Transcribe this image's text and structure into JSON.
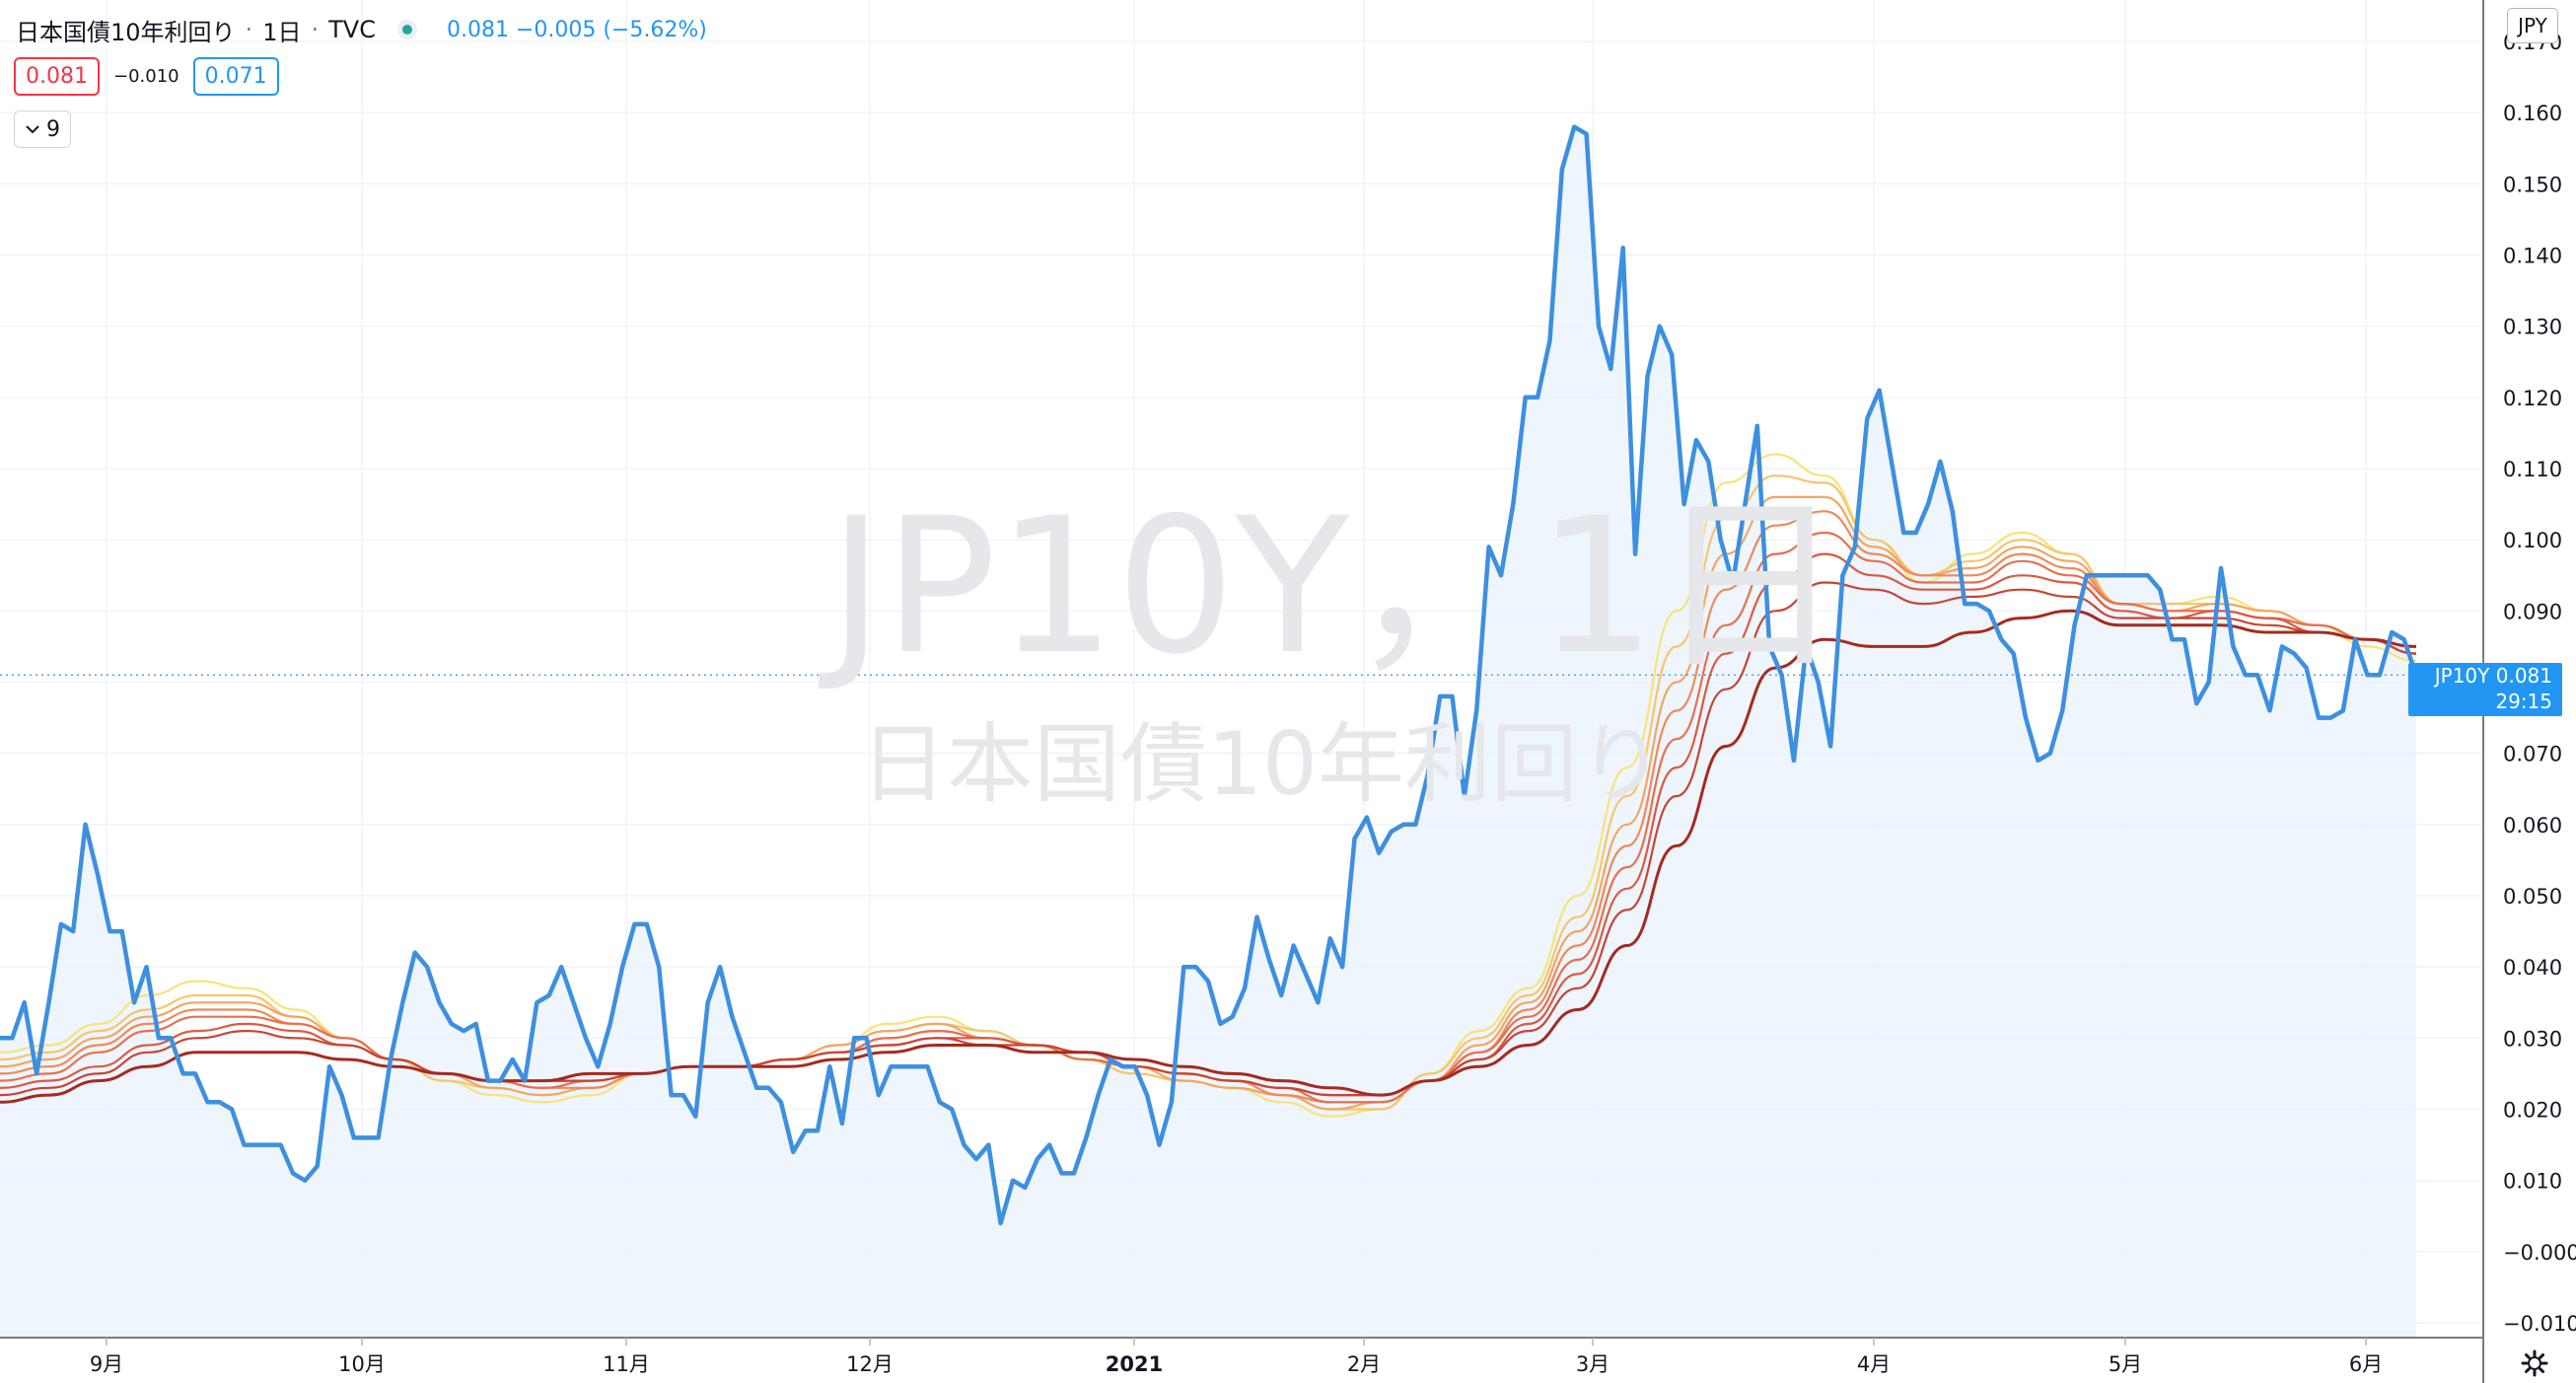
{
  "legend": {
    "symbol_name": "日本国債10年利回り",
    "interval": "1日",
    "exchange": "TVC",
    "sep": "·",
    "last_change": "0.081  −0.005 (−5.62%)"
  },
  "indicator_boxes": {
    "left": "0.081",
    "middle": "−0.010",
    "right": "0.071"
  },
  "collapse": {
    "count": "9",
    "icon": "chevron-down-icon"
  },
  "currency": "JPY",
  "price_label": {
    "ticker": "JP10Y",
    "value": "0.081",
    "countdown": "29:15"
  },
  "watermark": {
    "line1": "JP10Y，1日",
    "line2": "日本国債10年利回り"
  },
  "colors": {
    "price_line": "#3d8fe0",
    "area_fill": "#eaf3fc",
    "ribbon": [
      "#f7e37a",
      "#f6c56e",
      "#f2a662",
      "#ee8a58",
      "#e8704e",
      "#d95a42",
      "#c74536",
      "#a52a1f"
    ],
    "label_bg": "#2196f3"
  },
  "chart_data": {
    "type": "line",
    "title": "日本国債10年利回り · 1日 · TVC",
    "x_tick_labels": [
      "9月",
      "10月",
      "11月",
      "12月",
      "2021",
      "2月",
      "3月",
      "4月",
      "5月",
      "6月"
    ],
    "y_tick_labels": [
      "0.170",
      "0.160",
      "0.150",
      "0.140",
      "0.130",
      "0.120",
      "0.110",
      "0.100",
      "0.090",
      "0.080",
      "0.070",
      "0.060",
      "0.050",
      "0.040",
      "0.030",
      "0.020",
      "0.010",
      "−0.000",
      "−0.010"
    ],
    "ylim": [
      -0.01,
      0.17
    ],
    "grid": true,
    "series": [
      {
        "role": "price",
        "values": [
          0.03,
          0.03,
          0.035,
          0.025,
          0.035,
          0.046,
          0.045,
          0.06,
          0.053,
          0.045,
          0.045,
          0.035,
          0.04,
          0.03,
          0.03,
          0.025,
          0.025,
          0.021,
          0.021,
          0.02,
          0.015,
          0.015,
          0.015,
          0.015,
          0.011,
          0.01,
          0.012,
          0.026,
          0.022,
          0.016,
          0.016,
          0.016,
          0.027,
          0.035,
          0.042,
          0.04,
          0.035,
          0.032,
          0.031,
          0.032,
          0.024,
          0.024,
          0.027,
          0.024,
          0.035,
          0.036,
          0.04,
          0.035,
          0.03,
          0.026,
          0.032,
          0.04,
          0.046,
          0.046,
          0.04,
          0.022,
          0.022,
          0.019,
          0.035,
          0.04,
          0.033,
          0.028,
          0.023,
          0.023,
          0.021,
          0.014,
          0.017,
          0.017,
          0.026,
          0.018,
          0.03,
          0.03,
          0.022,
          0.026,
          0.026,
          0.026,
          0.026,
          0.021,
          0.02,
          0.015,
          0.013,
          0.015,
          0.004,
          0.01,
          0.009,
          0.013,
          0.015,
          0.011,
          0.011,
          0.016,
          0.022,
          0.027,
          0.026,
          0.026,
          0.022,
          0.015,
          0.021,
          0.04,
          0.04,
          0.038,
          0.032,
          0.033,
          0.037,
          0.047,
          0.041,
          0.036,
          0.043,
          0.039,
          0.035,
          0.044,
          0.04,
          0.058,
          0.061,
          0.056,
          0.059,
          0.06,
          0.06,
          0.067,
          0.078,
          0.078,
          0.064,
          0.076,
          0.099,
          0.095,
          0.105,
          0.12,
          0.12,
          0.128,
          0.152,
          0.158,
          0.157,
          0.13,
          0.124,
          0.141,
          0.098,
          0.123,
          0.13,
          0.126,
          0.105,
          0.114,
          0.111,
          0.1,
          0.094,
          0.105,
          0.116,
          0.085,
          0.081,
          0.069,
          0.085,
          0.08,
          0.071,
          0.095,
          0.099,
          0.117,
          0.121,
          0.111,
          0.101,
          0.101,
          0.105,
          0.111,
          0.104,
          0.091,
          0.091,
          0.09,
          0.086,
          0.084,
          0.075,
          0.069,
          0.07,
          0.076,
          0.088,
          0.095,
          0.095,
          0.095,
          0.095,
          0.095,
          0.095,
          0.093,
          0.086,
          0.086,
          0.077,
          0.08,
          0.096,
          0.085,
          0.081,
          0.081,
          0.076,
          0.085,
          0.084,
          0.082,
          0.075,
          0.075,
          0.076,
          0.086,
          0.081,
          0.081,
          0.087,
          0.086,
          0.081
        ]
      },
      {
        "role": "ema-ribbon",
        "values": [
          0.028,
          0.029,
          0.032,
          0.036,
          0.038,
          0.037,
          0.034,
          0.03,
          0.027,
          0.024,
          0.022,
          0.021,
          0.022,
          0.025,
          0.026,
          0.026,
          0.027,
          0.029,
          0.032,
          0.033,
          0.031,
          0.029,
          0.027,
          0.025,
          0.024,
          0.023,
          0.021,
          0.019,
          0.02,
          0.025,
          0.031,
          0.037,
          0.05,
          0.068,
          0.09,
          0.108,
          0.112,
          0.109,
          0.1,
          0.094,
          0.098,
          0.101,
          0.098,
          0.091,
          0.091,
          0.092,
          0.09,
          0.088,
          0.085,
          0.083
        ]
      },
      {
        "role": "ema-ribbon",
        "values": [
          0.027,
          0.028,
          0.031,
          0.034,
          0.036,
          0.036,
          0.033,
          0.03,
          0.027,
          0.024,
          0.023,
          0.022,
          0.023,
          0.025,
          0.026,
          0.026,
          0.027,
          0.029,
          0.031,
          0.032,
          0.031,
          0.029,
          0.027,
          0.025,
          0.024,
          0.023,
          0.022,
          0.02,
          0.02,
          0.025,
          0.03,
          0.036,
          0.047,
          0.064,
          0.085,
          0.103,
          0.109,
          0.108,
          0.1,
          0.095,
          0.097,
          0.1,
          0.098,
          0.091,
          0.091,
          0.091,
          0.09,
          0.088,
          0.086,
          0.084
        ]
      },
      {
        "role": "ema-ribbon",
        "values": [
          0.026,
          0.027,
          0.03,
          0.033,
          0.035,
          0.035,
          0.033,
          0.03,
          0.027,
          0.025,
          0.023,
          0.022,
          0.023,
          0.025,
          0.026,
          0.026,
          0.027,
          0.029,
          0.031,
          0.032,
          0.03,
          0.029,
          0.027,
          0.026,
          0.024,
          0.023,
          0.022,
          0.02,
          0.021,
          0.024,
          0.029,
          0.035,
          0.045,
          0.06,
          0.08,
          0.098,
          0.106,
          0.106,
          0.099,
          0.095,
          0.096,
          0.099,
          0.097,
          0.091,
          0.09,
          0.091,
          0.09,
          0.088,
          0.086,
          0.084
        ]
      },
      {
        "role": "ema-ribbon",
        "values": [
          0.025,
          0.026,
          0.029,
          0.032,
          0.034,
          0.034,
          0.032,
          0.03,
          0.027,
          0.025,
          0.024,
          0.023,
          0.023,
          0.025,
          0.026,
          0.026,
          0.027,
          0.028,
          0.03,
          0.031,
          0.03,
          0.029,
          0.027,
          0.026,
          0.025,
          0.024,
          0.022,
          0.021,
          0.021,
          0.024,
          0.028,
          0.034,
          0.043,
          0.057,
          0.076,
          0.093,
          0.102,
          0.104,
          0.098,
          0.095,
          0.095,
          0.098,
          0.096,
          0.091,
          0.09,
          0.09,
          0.089,
          0.088,
          0.086,
          0.084
        ]
      },
      {
        "role": "ema-ribbon",
        "values": [
          0.024,
          0.025,
          0.028,
          0.031,
          0.033,
          0.033,
          0.032,
          0.03,
          0.027,
          0.025,
          0.024,
          0.023,
          0.024,
          0.025,
          0.026,
          0.026,
          0.027,
          0.028,
          0.03,
          0.031,
          0.03,
          0.029,
          0.027,
          0.026,
          0.025,
          0.024,
          0.023,
          0.021,
          0.021,
          0.024,
          0.028,
          0.033,
          0.041,
          0.054,
          0.072,
          0.088,
          0.098,
          0.101,
          0.097,
          0.094,
          0.094,
          0.097,
          0.095,
          0.091,
          0.09,
          0.09,
          0.089,
          0.088,
          0.086,
          0.084
        ]
      },
      {
        "role": "ema-ribbon",
        "values": [
          0.023,
          0.024,
          0.026,
          0.029,
          0.031,
          0.032,
          0.031,
          0.029,
          0.027,
          0.025,
          0.024,
          0.024,
          0.024,
          0.025,
          0.026,
          0.026,
          0.027,
          0.028,
          0.029,
          0.03,
          0.03,
          0.029,
          0.028,
          0.026,
          0.025,
          0.024,
          0.023,
          0.022,
          0.022,
          0.024,
          0.027,
          0.032,
          0.039,
          0.051,
          0.068,
          0.084,
          0.094,
          0.098,
          0.095,
          0.093,
          0.093,
          0.095,
          0.094,
          0.09,
          0.089,
          0.09,
          0.089,
          0.087,
          0.086,
          0.084
        ]
      },
      {
        "role": "ema-ribbon",
        "values": [
          0.022,
          0.023,
          0.025,
          0.028,
          0.03,
          0.031,
          0.03,
          0.029,
          0.027,
          0.025,
          0.024,
          0.024,
          0.024,
          0.025,
          0.026,
          0.026,
          0.027,
          0.028,
          0.029,
          0.03,
          0.029,
          0.029,
          0.028,
          0.026,
          0.025,
          0.024,
          0.023,
          0.022,
          0.022,
          0.024,
          0.027,
          0.031,
          0.037,
          0.048,
          0.064,
          0.079,
          0.09,
          0.094,
          0.093,
          0.091,
          0.092,
          0.093,
          0.092,
          0.089,
          0.089,
          0.089,
          0.088,
          0.087,
          0.086,
          0.084
        ]
      },
      {
        "role": "ema-ribbon",
        "values": [
          0.021,
          0.022,
          0.024,
          0.026,
          0.028,
          0.028,
          0.028,
          0.027,
          0.026,
          0.025,
          0.024,
          0.024,
          0.025,
          0.025,
          0.026,
          0.026,
          0.026,
          0.027,
          0.028,
          0.029,
          0.029,
          0.028,
          0.028,
          0.027,
          0.026,
          0.025,
          0.024,
          0.023,
          0.022,
          0.024,
          0.026,
          0.029,
          0.034,
          0.043,
          0.057,
          0.071,
          0.082,
          0.086,
          0.085,
          0.085,
          0.087,
          0.089,
          0.09,
          0.088,
          0.088,
          0.088,
          0.087,
          0.087,
          0.086,
          0.085
        ]
      }
    ]
  }
}
